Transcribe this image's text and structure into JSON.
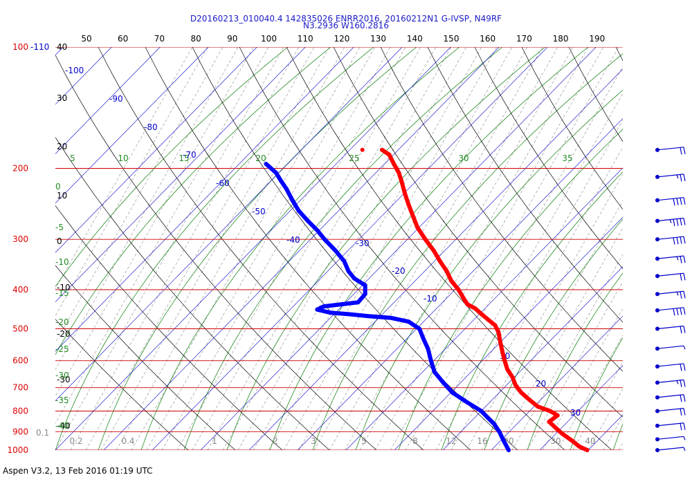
{
  "header": {
    "line1": "D20160213_010040.4 142835026 ENRR2016, 20160212N1 G-IVSP, N49RF",
    "line2": "N3.2936 W160.2816"
  },
  "footer": {
    "text": "Aspen V3.2, 13 Feb 2016  01:19 UTC"
  },
  "colors": {
    "temperature": "#ff0000",
    "dewpoint": "#0000ff",
    "isobar": "#cc0000",
    "isotherm": "#0000cc",
    "dry_adiabat": "#000000",
    "moist_adiabat": "#228b22",
    "mixing_ratio": "#888888"
  },
  "chart_data": {
    "type": "skew-t",
    "pressure_levels": [
      100,
      200,
      300,
      400,
      500,
      600,
      700,
      800,
      900,
      1000
    ],
    "pressure_labels": [
      "100",
      "200",
      "300",
      "400",
      "500",
      "600",
      "700",
      "800",
      "900",
      "1000"
    ],
    "pressure_level_extra_label": "-110",
    "isotherm_labels": [
      "-100",
      "-90",
      "-80",
      "-70",
      "-60",
      "-50",
      "-40",
      "-30",
      "-20",
      "-10",
      "10",
      "20",
      "30"
    ],
    "theta_top_labels": [
      "50",
      "60",
      "70",
      "80",
      "90",
      "100",
      "110",
      "120",
      "130",
      "140",
      "150",
      "160",
      "170",
      "180",
      "190"
    ],
    "left_dry_labels": [
      "40",
      "30",
      "20",
      "10",
      "0",
      "-10",
      "-20",
      "-30",
      "-40"
    ],
    "theta_e_labels": [
      "5",
      "10",
      "15",
      "20",
      "25",
      "30",
      "35"
    ],
    "theta_e_left_labels": [
      "0",
      "-5",
      "-10",
      "-15",
      "-20",
      "-25",
      "-30",
      "-35",
      "-40"
    ],
    "mixing_ratio_labels": [
      "0.1",
      "0.2",
      "0.4",
      "1",
      "2",
      "3",
      "5",
      "8",
      "12",
      "16",
      "20",
      "30",
      "40"
    ],
    "isolated_point": {
      "p": 180,
      "t": -56
    },
    "series": [
      {
        "name": "temperature",
        "points": [
          [
            180,
            -52
          ],
          [
            185,
            -50
          ],
          [
            195,
            -48
          ],
          [
            205,
            -46
          ],
          [
            215,
            -44.5
          ],
          [
            230,
            -42.5
          ],
          [
            245,
            -40.5
          ],
          [
            260,
            -38.5
          ],
          [
            280,
            -36
          ],
          [
            300,
            -33
          ],
          [
            320,
            -30
          ],
          [
            340,
            -27.5
          ],
          [
            360,
            -25
          ],
          [
            380,
            -23
          ],
          [
            400,
            -20.5
          ],
          [
            420,
            -18.5
          ],
          [
            435,
            -17
          ],
          [
            445,
            -15
          ],
          [
            460,
            -13
          ],
          [
            475,
            -11
          ],
          [
            490,
            -9
          ],
          [
            510,
            -7.5
          ],
          [
            540,
            -6
          ],
          [
            570,
            -4.5
          ],
          [
            600,
            -3
          ],
          [
            630,
            -1.5
          ],
          [
            660,
            0.5
          ],
          [
            690,
            2
          ],
          [
            720,
            4
          ],
          [
            750,
            6.5
          ],
          [
            780,
            9
          ],
          [
            800,
            12
          ],
          [
            820,
            14
          ],
          [
            850,
            13
          ],
          [
            880,
            15
          ],
          [
            910,
            17
          ],
          [
            950,
            20
          ],
          [
            980,
            22
          ],
          [
            1000,
            24
          ]
        ]
      },
      {
        "name": "dewpoint",
        "points": [
          [
            195,
            -74
          ],
          [
            205,
            -71
          ],
          [
            215,
            -69
          ],
          [
            225,
            -67
          ],
          [
            240,
            -64.5
          ],
          [
            255,
            -62
          ],
          [
            270,
            -59
          ],
          [
            285,
            -56
          ],
          [
            300,
            -53.5
          ],
          [
            320,
            -50
          ],
          [
            340,
            -47
          ],
          [
            360,
            -45
          ],
          [
            375,
            -43
          ],
          [
            390,
            -40
          ],
          [
            410,
            -39
          ],
          [
            430,
            -39.5
          ],
          [
            440,
            -46
          ],
          [
            448,
            -47
          ],
          [
            456,
            -44
          ],
          [
            460,
            -40
          ],
          [
            465,
            -36
          ],
          [
            470,
            -31
          ],
          [
            480,
            -27
          ],
          [
            500,
            -24
          ],
          [
            530,
            -22
          ],
          [
            560,
            -20
          ],
          [
            600,
            -18
          ],
          [
            640,
            -16
          ],
          [
            680,
            -13
          ],
          [
            720,
            -10
          ],
          [
            760,
            -6
          ],
          [
            800,
            -2
          ],
          [
            830,
            0
          ],
          [
            860,
            2
          ],
          [
            900,
            4
          ],
          [
            950,
            6
          ],
          [
            1000,
            8
          ]
        ]
      }
    ],
    "wind_barbs": [
      {
        "p": 180,
        "speed": 10
      },
      {
        "p": 210,
        "speed": 15
      },
      {
        "p": 240,
        "speed": 20
      },
      {
        "p": 270,
        "speed": 25
      },
      {
        "p": 300,
        "speed": 20
      },
      {
        "p": 335,
        "speed": 15
      },
      {
        "p": 370,
        "speed": 10
      },
      {
        "p": 410,
        "speed": 15
      },
      {
        "p": 450,
        "speed": 20
      },
      {
        "p": 500,
        "speed": 10
      },
      {
        "p": 560,
        "speed": 5
      },
      {
        "p": 620,
        "speed": 10
      },
      {
        "p": 680,
        "speed": 15
      },
      {
        "p": 740,
        "speed": 10
      },
      {
        "p": 800,
        "speed": 10
      },
      {
        "p": 870,
        "speed": 10
      },
      {
        "p": 940,
        "speed": 5
      },
      {
        "p": 1000,
        "speed": 5
      }
    ]
  }
}
